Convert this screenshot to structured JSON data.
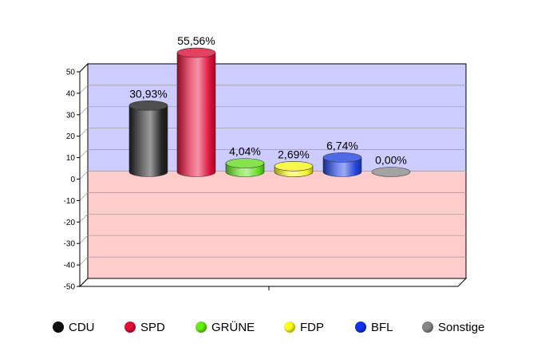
{
  "chart_data": {
    "type": "bar",
    "title": "",
    "xlabel": "",
    "ylabel": "",
    "ylim": [
      -50,
      50
    ],
    "yticks": [
      50,
      40,
      30,
      20,
      10,
      0,
      -10,
      -20,
      -30,
      -40,
      -50
    ],
    "grid": true,
    "legend_position": "bottom",
    "background_colors": {
      "positive": "#ccccff",
      "negative": "#ffcccc"
    },
    "categories": [
      "CDU",
      "SPD",
      "GRÜNE",
      "FDP",
      "BFL",
      "Sonstige"
    ],
    "values": [
      30.93,
      55.56,
      4.04,
      2.69,
      6.74,
      0.0
    ],
    "value_labels": [
      "30,93%",
      "55,56%",
      "4,04%",
      "2,69%",
      "6,74%",
      "0,00%"
    ],
    "colors": [
      "#222222",
      "#e0103a",
      "#66dd22",
      "#f4f41e",
      "#2244dd",
      "#8c8c8c"
    ]
  },
  "legend": [
    {
      "label": "CDU",
      "color": "#111111"
    },
    {
      "label": "SPD",
      "color": "#e0103a"
    },
    {
      "label": "GRÜNE",
      "color": "#66ee11"
    },
    {
      "label": "FDP",
      "color": "#ffff22"
    },
    {
      "label": "BFL",
      "color": "#1133ee"
    },
    {
      "label": "Sonstige",
      "color": "#888888"
    }
  ]
}
